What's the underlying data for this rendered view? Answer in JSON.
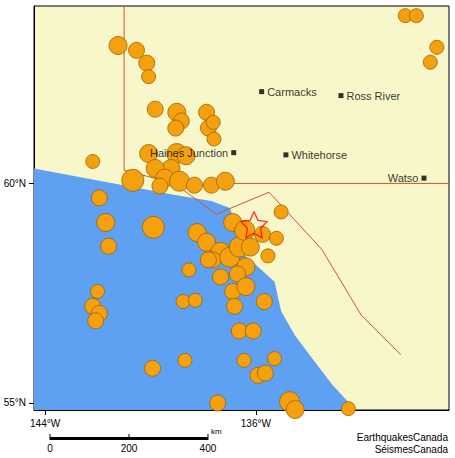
{
  "chart_data": {
    "type": "map",
    "xlim": [
      -144.42,
      -128.67
    ],
    "ylim": [
      54.84,
      64.04
    ],
    "xticks": [
      {
        "value": -144,
        "label": "144°W"
      },
      {
        "value": -136,
        "label": "136°W"
      }
    ],
    "yticks": [
      {
        "value": 55,
        "label": "55°N"
      },
      {
        "value": 60,
        "label": "60°N"
      }
    ],
    "grid": false,
    "land": {
      "color": "#f7f7c9"
    },
    "water": {
      "color": "#5ea1f2",
      "lon": [
        -144.42,
        -142.65,
        -140.88,
        -139.11,
        -137.69,
        -136.99,
        -136.7,
        -136.56,
        -135.92,
        -135.29,
        -135.04,
        -134.51,
        -133.8,
        -133.09,
        -132.21,
        -144.42
      ],
      "lat": [
        60.34,
        60.14,
        59.94,
        59.74,
        59.6,
        59.44,
        58.99,
        58.43,
        58.1,
        57.76,
        57.09,
        56.53,
        55.97,
        55.41,
        54.84,
        54.84
      ]
    },
    "borders": [
      {
        "color": "#cc5533",
        "lon": [
          -141,
          -141
        ],
        "lat": [
          64.04,
          60.3
        ]
      },
      {
        "color": "#cc5533",
        "lon": [
          -141,
          -139.1,
          -137.5,
          -135.5,
          -133.5,
          -132,
          -130.5
        ],
        "lat": [
          60.3,
          60.0,
          59.3,
          59.8,
          58.5,
          57,
          56.1
        ]
      },
      {
        "color": "#cc5533",
        "lon": [
          -137.5,
          -128.67
        ],
        "lat": [
          60,
          60
        ]
      }
    ],
    "earthquakes": {
      "color": "#f5a00f",
      "lon": [
        -140.14,
        -140.53,
        -141.23,
        -140.07,
        -130.33,
        -129.91,
        -129.13,
        -129.38,
        -139.82,
        -139.0,
        -138.83,
        -139.04,
        -137.87,
        -137.8,
        -137.59,
        -137.62,
        -139.0,
        -138.65,
        -139.22,
        -140.07,
        -139.82,
        -139.46,
        -138.9,
        -140.67,
        -139.64,
        -138.33,
        -137.69,
        -137.16,
        -142.19,
        -141.94,
        -141.7,
        -141.59,
        -139.89,
        -138.23,
        -137.87,
        -137.34,
        -137.62,
        -136.99,
        -136.63,
        -136.88,
        -136.42,
        -136.21,
        -135.75,
        -136.38,
        -136.7,
        -137.34,
        -137.8,
        -138.54,
        -136.88,
        -136.38,
        -136.81,
        -136.63,
        -136.1,
        -135.68,
        -135.54,
        -135.04,
        -135.22,
        -142.01,
        -142.19,
        -141.94,
        -142.08,
        -138.76,
        -138.3,
        -136.45,
        -135.92,
        -135.29,
        -135.64,
        -139.92,
        -138.69,
        -137.45,
        -134.72,
        -134.51,
        -132.49
      ],
      "lat": [
        62.74,
        63.03,
        63.14,
        62.43,
        63.82,
        63.82,
        63.1,
        62.76,
        61.69,
        61.62,
        61.42,
        61.26,
        61.62,
        61.26,
        61.01,
        61.39,
        60.68,
        60.63,
        60.34,
        60.68,
        60.34,
        60.12,
        60.05,
        60.07,
        59.94,
        59.96,
        59.96,
        60.05,
        60.5,
        59.67,
        59.11,
        58.57,
        59.0,
        58.88,
        58.66,
        58.43,
        58.26,
        58.32,
        58.55,
        59.11,
        58.93,
        58.55,
        58.84,
        58.1,
        57.94,
        57.87,
        58.26,
        58.03,
        57.54,
        57.65,
        57.2,
        56.64,
        56.64,
        57.31,
        58.35,
        59.35,
        58.75,
        57.54,
        57.2,
        57.04,
        56.87,
        57.31,
        57.34,
        55.97,
        55.63,
        56.01,
        55.68,
        55.79,
        55.97,
        55.0,
        55.03,
        54.85,
        54.87
      ],
      "magnitude": [
        4,
        4,
        4.5,
        3.5,
        3.5,
        3.5,
        3.5,
        3.5,
        4,
        4.5,
        4,
        4,
        4,
        4,
        3.5,
        3.5,
        5,
        4.5,
        4.5,
        4.5,
        4.5,
        4.5,
        5,
        5.5,
        4,
        4,
        4,
        4.5,
        3.5,
        4,
        4.5,
        4,
        5.5,
        4.5,
        4.5,
        5,
        4,
        5,
        5,
        4.5,
        5,
        4.5,
        4,
        4.5,
        4,
        4,
        4,
        3.5,
        4,
        4.5,
        4,
        4,
        4,
        4,
        3.5,
        3.5,
        3.5,
        3.5,
        4,
        4,
        4,
        3.5,
        3.5,
        3.5,
        4,
        3.5,
        4,
        4,
        3.5,
        4,
        5,
        4.5,
        3.5
      ]
    },
    "epicenter": {
      "lon": -136.07,
      "lat": 59.06,
      "color": "#ff0000",
      "marker": "star"
    },
    "cities": {
      "names": [
        "Carmacks",
        "Ross River",
        "Haines Junction",
        "Whitehorse",
        "Watso"
      ],
      "lon": [
        -135.78,
        -132.77,
        -136.84,
        -134.86,
        -129.62
      ],
      "lat": [
        62.09,
        62.0,
        60.7,
        60.65,
        60.12
      ]
    },
    "scale_bar": {
      "ticks": [
        0,
        200,
        400
      ],
      "unit": "km"
    },
    "credits": [
      "EarthquakesCanada",
      "SéismesCanada"
    ]
  }
}
